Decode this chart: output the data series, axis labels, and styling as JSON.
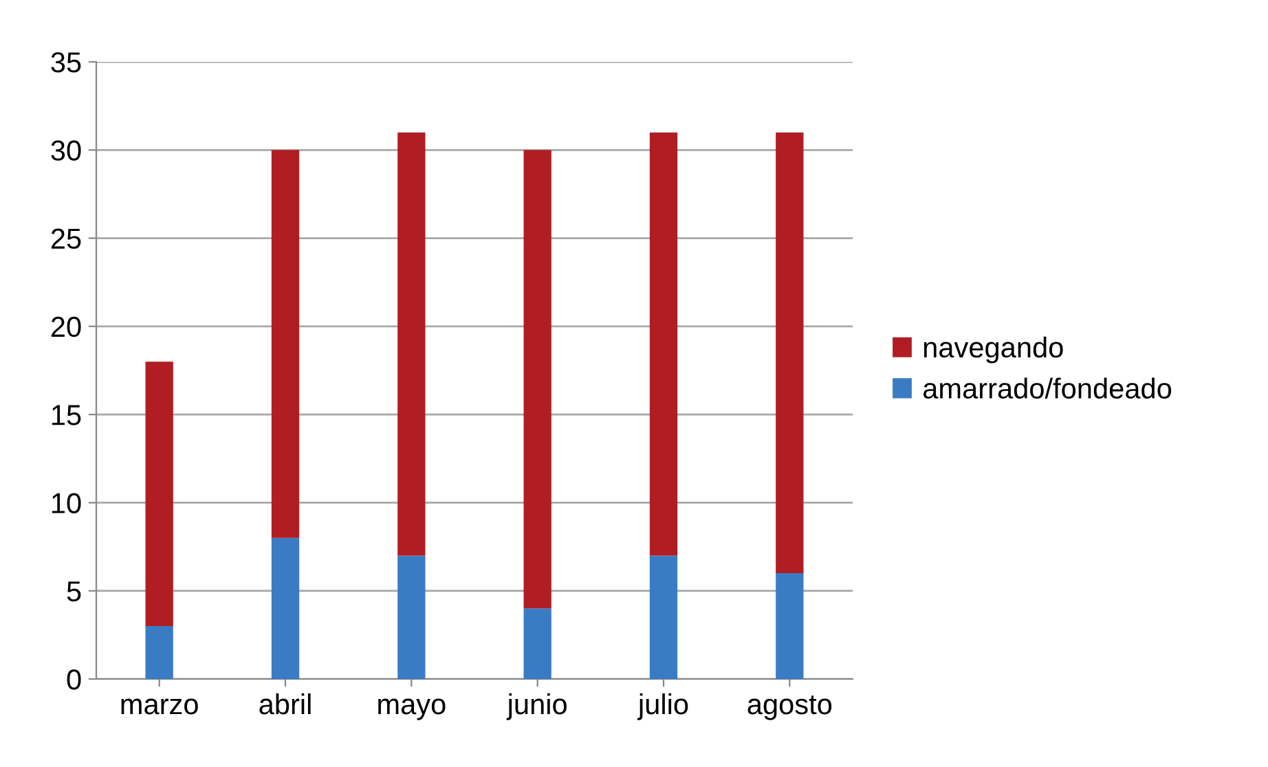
{
  "chart_data": {
    "type": "bar",
    "stacked": true,
    "categories": [
      "marzo",
      "abril",
      "mayo",
      "junio",
      "julio",
      "agosto"
    ],
    "series": [
      {
        "name": "amarrado/fondeado",
        "color": "#3a7cc4",
        "values": [
          3,
          8,
          7,
          4,
          7,
          6
        ]
      },
      {
        "name": "navegando",
        "color": "#b01e24",
        "values": [
          15,
          22,
          24,
          26,
          24,
          25
        ]
      }
    ],
    "ylim": [
      0,
      35
    ],
    "yticks": [
      0,
      5,
      10,
      15,
      20,
      25,
      30,
      35
    ],
    "grid": "y",
    "legend": "right"
  }
}
